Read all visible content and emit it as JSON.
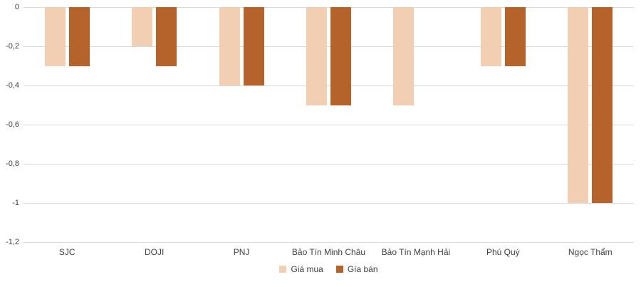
{
  "chart_data": {
    "type": "bar",
    "title": "",
    "xlabel": "",
    "ylabel": "",
    "categories": [
      "SJC",
      "DOJI",
      "PNJ",
      "Bảo Tín Minh Châu",
      "Bảo Tín Mạnh Hải",
      "Phú Quý",
      "Ngọc Thẩm"
    ],
    "series": [
      {
        "name": "Giá mua",
        "color": "#F2CFB2",
        "values": [
          -0.3,
          -0.2,
          -0.4,
          -0.5,
          -0.5,
          -0.3,
          -1
        ]
      },
      {
        "name": "Gía bán",
        "color": "#B5622B",
        "values": [
          -0.3,
          -0.3,
          -0.4,
          -0.5,
          0,
          -0.3,
          -1
        ]
      }
    ],
    "ylim": [
      -1.2,
      0
    ],
    "y_tick_labels": [
      "0",
      "-0,2",
      "-0,4",
      "-0,6",
      "-0,8",
      "-1",
      "-1,2"
    ],
    "decimal_separator": ",",
    "grid": true,
    "gridline_color": "#D9D9D9",
    "text_color": "#404040",
    "background_color": "#FFFFFF",
    "legend_position": "bottom"
  }
}
